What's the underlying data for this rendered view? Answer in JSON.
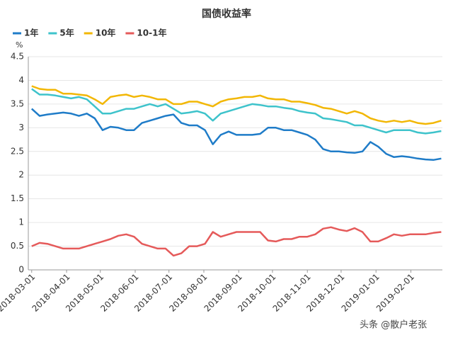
{
  "chart_data": {
    "type": "line",
    "title": "国债收益率",
    "y_label": "%",
    "watermark": "头条 @散户老张",
    "x": [
      "2018-03-01",
      "2018-03-08",
      "2018-03-15",
      "2018-03-22",
      "2018-03-29",
      "2018-04-05",
      "2018-04-12",
      "2018-04-19",
      "2018-04-26",
      "2018-05-03",
      "2018-05-10",
      "2018-05-17",
      "2018-05-24",
      "2018-05-31",
      "2018-06-07",
      "2018-06-14",
      "2018-06-21",
      "2018-06-28",
      "2018-07-05",
      "2018-07-12",
      "2018-07-19",
      "2018-07-26",
      "2018-08-02",
      "2018-08-09",
      "2018-08-16",
      "2018-08-23",
      "2018-08-30",
      "2018-09-06",
      "2018-09-13",
      "2018-09-20",
      "2018-09-27",
      "2018-10-04",
      "2018-10-11",
      "2018-10-18",
      "2018-10-25",
      "2018-11-01",
      "2018-11-08",
      "2018-11-15",
      "2018-11-22",
      "2018-11-29",
      "2018-12-06",
      "2018-12-13",
      "2018-12-20",
      "2018-12-27",
      "2019-01-03",
      "2019-01-10",
      "2019-01-17",
      "2019-01-24",
      "2019-01-31",
      "2019-02-07",
      "2019-02-14",
      "2019-02-21",
      "2019-02-28"
    ],
    "series": [
      {
        "name": "1年",
        "color": "#1f7cc8",
        "values": [
          3.4,
          3.25,
          3.28,
          3.3,
          3.32,
          3.3,
          3.25,
          3.3,
          3.2,
          2.95,
          3.02,
          3.0,
          2.95,
          2.95,
          3.1,
          3.15,
          3.2,
          3.25,
          3.28,
          3.1,
          3.05,
          3.05,
          2.95,
          2.65,
          2.85,
          2.92,
          2.85,
          2.85,
          2.85,
          2.87,
          3.0,
          3.0,
          2.95,
          2.95,
          2.9,
          2.85,
          2.75,
          2.55,
          2.5,
          2.5,
          2.48,
          2.47,
          2.5,
          2.7,
          2.6,
          2.45,
          2.38,
          2.4,
          2.38,
          2.35,
          2.33,
          2.32,
          2.35
        ]
      },
      {
        "name": "5年",
        "color": "#3ec3cb",
        "values": [
          3.82,
          3.7,
          3.7,
          3.68,
          3.65,
          3.62,
          3.65,
          3.6,
          3.45,
          3.3,
          3.3,
          3.35,
          3.4,
          3.4,
          3.45,
          3.5,
          3.45,
          3.5,
          3.4,
          3.3,
          3.32,
          3.35,
          3.3,
          3.15,
          3.3,
          3.35,
          3.4,
          3.45,
          3.5,
          3.48,
          3.45,
          3.45,
          3.42,
          3.4,
          3.35,
          3.32,
          3.3,
          3.2,
          3.18,
          3.15,
          3.12,
          3.05,
          3.05,
          3.0,
          2.95,
          2.9,
          2.95,
          2.95,
          2.95,
          2.9,
          2.88,
          2.9,
          2.93
        ]
      },
      {
        "name": "10年",
        "color": "#f2b705",
        "values": [
          3.88,
          3.82,
          3.8,
          3.8,
          3.72,
          3.72,
          3.7,
          3.68,
          3.6,
          3.5,
          3.65,
          3.68,
          3.7,
          3.65,
          3.68,
          3.65,
          3.6,
          3.6,
          3.5,
          3.5,
          3.55,
          3.55,
          3.5,
          3.45,
          3.55,
          3.6,
          3.62,
          3.65,
          3.65,
          3.68,
          3.62,
          3.6,
          3.6,
          3.55,
          3.55,
          3.52,
          3.48,
          3.42,
          3.4,
          3.35,
          3.3,
          3.35,
          3.3,
          3.2,
          3.15,
          3.12,
          3.15,
          3.12,
          3.15,
          3.1,
          3.08,
          3.1,
          3.15
        ]
      },
      {
        "name": "10-1年",
        "color": "#e55a5a",
        "values": [
          0.5,
          0.57,
          0.55,
          0.5,
          0.45,
          0.45,
          0.45,
          0.5,
          0.55,
          0.6,
          0.65,
          0.72,
          0.75,
          0.7,
          0.55,
          0.5,
          0.45,
          0.45,
          0.3,
          0.35,
          0.5,
          0.5,
          0.55,
          0.8,
          0.7,
          0.75,
          0.8,
          0.8,
          0.8,
          0.8,
          0.62,
          0.6,
          0.65,
          0.65,
          0.7,
          0.7,
          0.75,
          0.87,
          0.9,
          0.85,
          0.82,
          0.88,
          0.8,
          0.6,
          0.6,
          0.67,
          0.75,
          0.72,
          0.75,
          0.75,
          0.75,
          0.78,
          0.8
        ]
      }
    ],
    "xlim": [
      "2018-02-26",
      "2019-03-01"
    ],
    "xticks": [
      "2018-03-01",
      "2018-04-01",
      "2018-05-01",
      "2018-06-01",
      "2018-07-01",
      "2018-08-01",
      "2018-09-01",
      "2018-10-01",
      "2018-11-01",
      "2018-12-01",
      "2019-01-01",
      "2019-02-01"
    ],
    "ylim": [
      0,
      4.5
    ],
    "yticks": [
      0,
      0.5,
      1,
      1.5,
      2,
      2.5,
      3,
      3.5,
      4,
      4.5
    ],
    "grid": true
  }
}
